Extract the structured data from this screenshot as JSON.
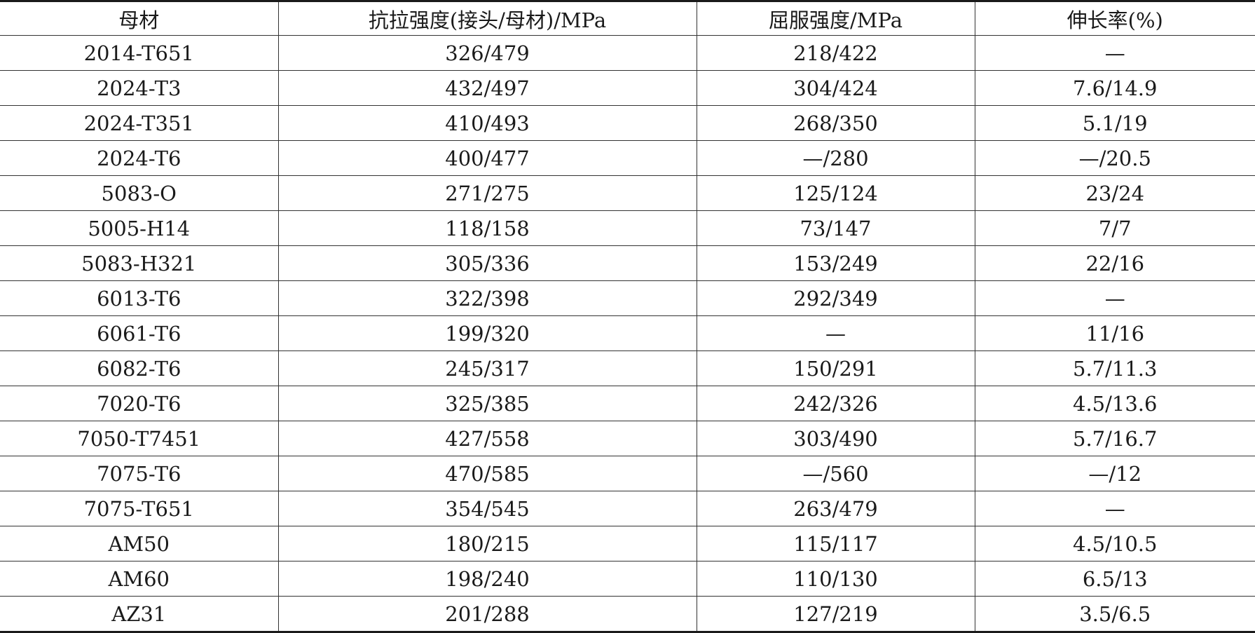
{
  "table": {
    "headers": [
      "母材",
      "抗拉强度(接头/母材)/MPa",
      "屈服强度/MPa",
      "伸长率(%)"
    ],
    "rows": [
      [
        "2014-T651",
        "326/479",
        "218/422",
        "—"
      ],
      [
        "2024-T3",
        "432/497",
        "304/424",
        "7.6/14.9"
      ],
      [
        "2024-T351",
        "410/493",
        "268/350",
        "5.1/19"
      ],
      [
        "2024-T6",
        "400/477",
        "—/280",
        "—/20.5"
      ],
      [
        "5083-O",
        "271/275",
        "125/124",
        "23/24"
      ],
      [
        "5005-H14",
        "118/158",
        "73/147",
        "7/7"
      ],
      [
        "5083-H321",
        "305/336",
        "153/249",
        "22/16"
      ],
      [
        "6013-T6",
        "322/398",
        "292/349",
        "—"
      ],
      [
        "6061-T6",
        "199/320",
        "—",
        "11/16"
      ],
      [
        "6082-T6",
        "245/317",
        "150/291",
        "5.7/11.3"
      ],
      [
        "7020-T6",
        "325/385",
        "242/326",
        "4.5/13.6"
      ],
      [
        "7050-T7451",
        "427/558",
        "303/490",
        "5.7/16.7"
      ],
      [
        "7075-T6",
        "470/585",
        "—/560",
        "—/12"
      ],
      [
        "7075-T651",
        "354/545",
        "263/479",
        "—"
      ],
      [
        "AM50",
        "180/215",
        "115/117",
        "4.5/10.5"
      ],
      [
        "AM60",
        "198/240",
        "110/130",
        "6.5/13"
      ],
      [
        "AZ31",
        "201/288",
        "127/219",
        "3.5/6.5"
      ]
    ]
  }
}
